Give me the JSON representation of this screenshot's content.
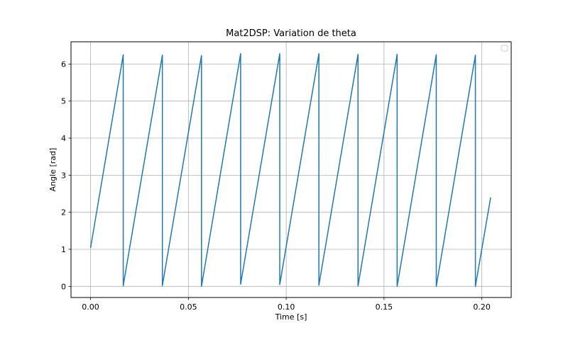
{
  "chart_data": {
    "type": "line",
    "title": "Mat2DSP: Variation de theta",
    "xlabel": "Time [s]",
    "ylabel": "Angle [rad]",
    "xlim": [
      -0.01,
      0.215
    ],
    "ylim": [
      -0.3,
      6.6
    ],
    "xticks": [
      0.0,
      0.05,
      0.1,
      0.15,
      0.2
    ],
    "xtick_labels": [
      "0.00",
      "0.05",
      "0.10",
      "0.15",
      "0.20"
    ],
    "yticks": [
      0,
      1,
      2,
      3,
      4,
      5,
      6
    ],
    "ytick_labels": [
      "0",
      "1",
      "2",
      "3",
      "4",
      "5",
      "6"
    ],
    "grid": true,
    "legend": "top-right (empty)",
    "line_color": "#1f77b4",
    "series": [
      {
        "x": [
          0.0,
          0.0167,
          0.0167,
          0.0367,
          0.0367,
          0.0567,
          0.0567,
          0.0767,
          0.0767,
          0.0967,
          0.0967,
          0.1167,
          0.1167,
          0.1367,
          0.1367,
          0.1567,
          0.1567,
          0.1767,
          0.1767,
          0.1967,
          0.1967,
          0.2045
        ],
        "y": [
          1.04,
          6.25,
          0.02,
          6.24,
          0.02,
          6.23,
          0.0,
          6.28,
          0.06,
          6.28,
          0.05,
          6.28,
          0.03,
          6.26,
          0.01,
          6.26,
          0.0,
          6.25,
          0.0,
          6.24,
          0.0,
          2.4
        ]
      }
    ]
  }
}
